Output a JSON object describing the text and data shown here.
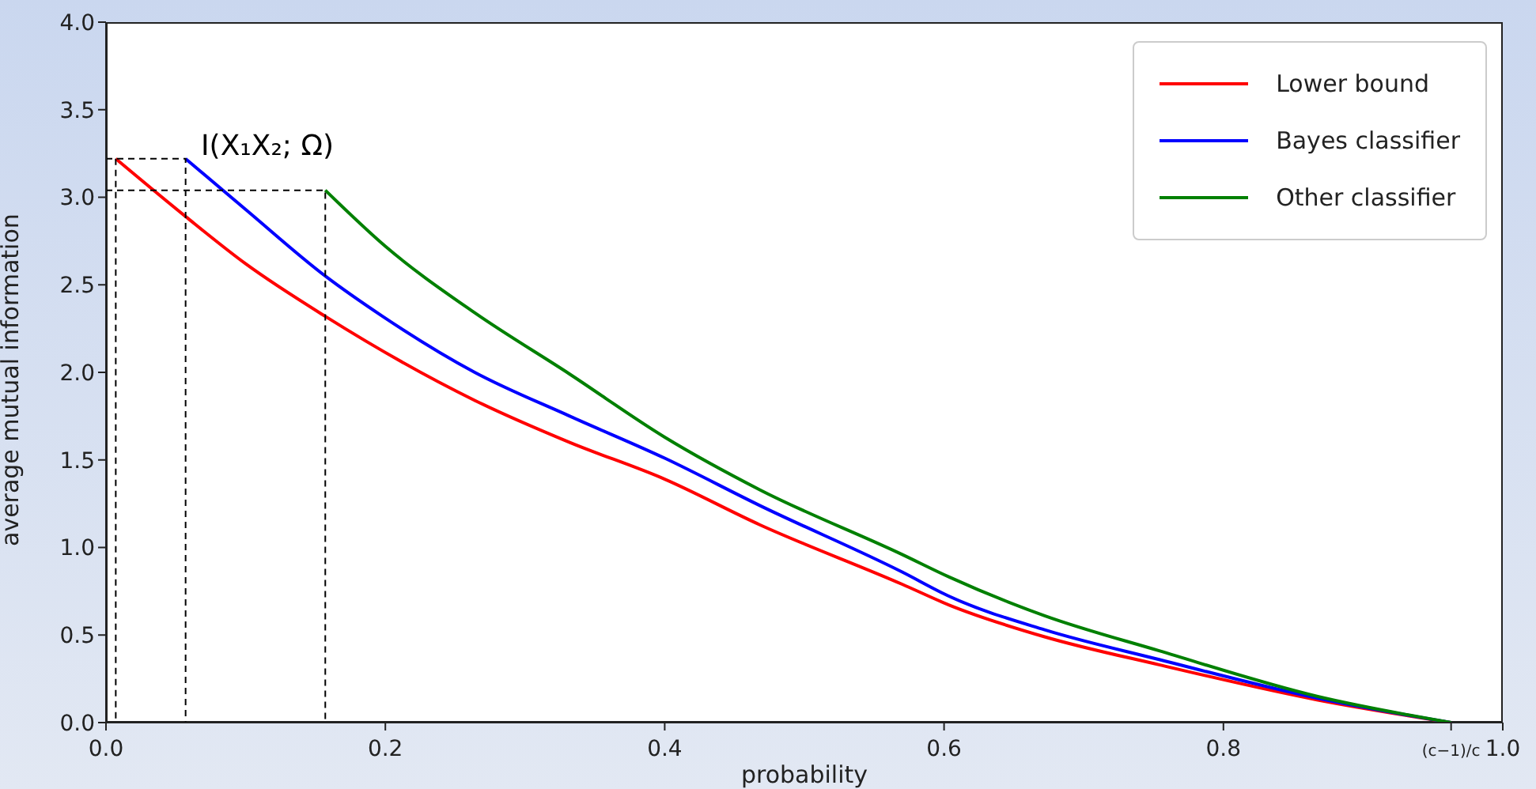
{
  "chart_data": {
    "type": "line",
    "xlabel": "probability",
    "ylabel": "average mutual information",
    "xlim": [
      0,
      1
    ],
    "ylim": [
      0,
      4
    ],
    "xticks": [
      {
        "value": 0,
        "label": "0.0"
      },
      {
        "value": 0.2,
        "label": "0.2"
      },
      {
        "value": 0.4,
        "label": "0.4"
      },
      {
        "value": 0.6,
        "label": "0.6"
      },
      {
        "value": 0.8,
        "label": "0.8"
      },
      {
        "value": 0.963,
        "label": "(c−1)/c"
      },
      {
        "value": 1,
        "label": "1.0"
      }
    ],
    "yticks": [
      {
        "value": 0,
        "label": "0.0"
      },
      {
        "value": 0.5,
        "label": "0.5"
      },
      {
        "value": 1,
        "label": "1.0"
      },
      {
        "value": 1.5,
        "label": "1.5"
      },
      {
        "value": 2,
        "label": "2.0"
      },
      {
        "value": 2.5,
        "label": "2.5"
      },
      {
        "value": 3,
        "label": "3.0"
      },
      {
        "value": 3.5,
        "label": "3.5"
      },
      {
        "value": 4,
        "label": "4.0"
      }
    ],
    "legend": "top right",
    "line_style": "solid",
    "marker": "none",
    "annotations": [
      "I(X₁X₂; Ω)"
    ],
    "series": [
      {
        "name": "Lower bound",
        "color": "#ff0000",
        "x": [
          0.007,
          0.057,
          0.1,
          0.157,
          0.264,
          0.332,
          0.4,
          0.468,
          0.57,
          0.604,
          0.672,
          0.754,
          0.867,
          0.963
        ],
        "values": [
          3.22,
          2.89,
          2.62,
          2.32,
          1.84,
          1.6,
          1.39,
          1.13,
          0.79,
          0.67,
          0.49,
          0.33,
          0.13,
          0
        ]
      },
      {
        "name": "Bayes classifier",
        "color": "#0000ff",
        "x": [
          0.057,
          0.1,
          0.157,
          0.198,
          0.264,
          0.332,
          0.4,
          0.468,
          0.57,
          0.604,
          0.672,
          0.754,
          0.867,
          0.963
        ],
        "values": [
          3.22,
          2.93,
          2.55,
          2.32,
          2.0,
          1.75,
          1.51,
          1.24,
          0.86,
          0.72,
          0.53,
          0.36,
          0.14,
          0
        ]
      },
      {
        "name": "Other classifier",
        "color": "#008000",
        "x": [
          0.157,
          0.2,
          0.264,
          0.332,
          0.4,
          0.468,
          0.57,
          0.604,
          0.672,
          0.754,
          0.867,
          0.963
        ],
        "values": [
          3.04,
          2.72,
          2.34,
          1.99,
          1.63,
          1.33,
          0.96,
          0.83,
          0.61,
          0.41,
          0.15,
          0
        ]
      },
      {
        "color": "#000000",
        "line_style": "dashed",
        "x": [
          0,
          0.057,
          0.057
        ],
        "values": [
          3.22,
          3.22,
          0
        ]
      },
      {
        "color": "#000000",
        "line_style": "dashed",
        "x": [
          0.007,
          0.007
        ],
        "values": [
          3.22,
          0
        ]
      },
      {
        "color": "#000000",
        "line_style": "dashed",
        "x": [
          0,
          0.157,
          0.157
        ],
        "values": [
          3.04,
          3.04,
          0
        ]
      }
    ]
  }
}
